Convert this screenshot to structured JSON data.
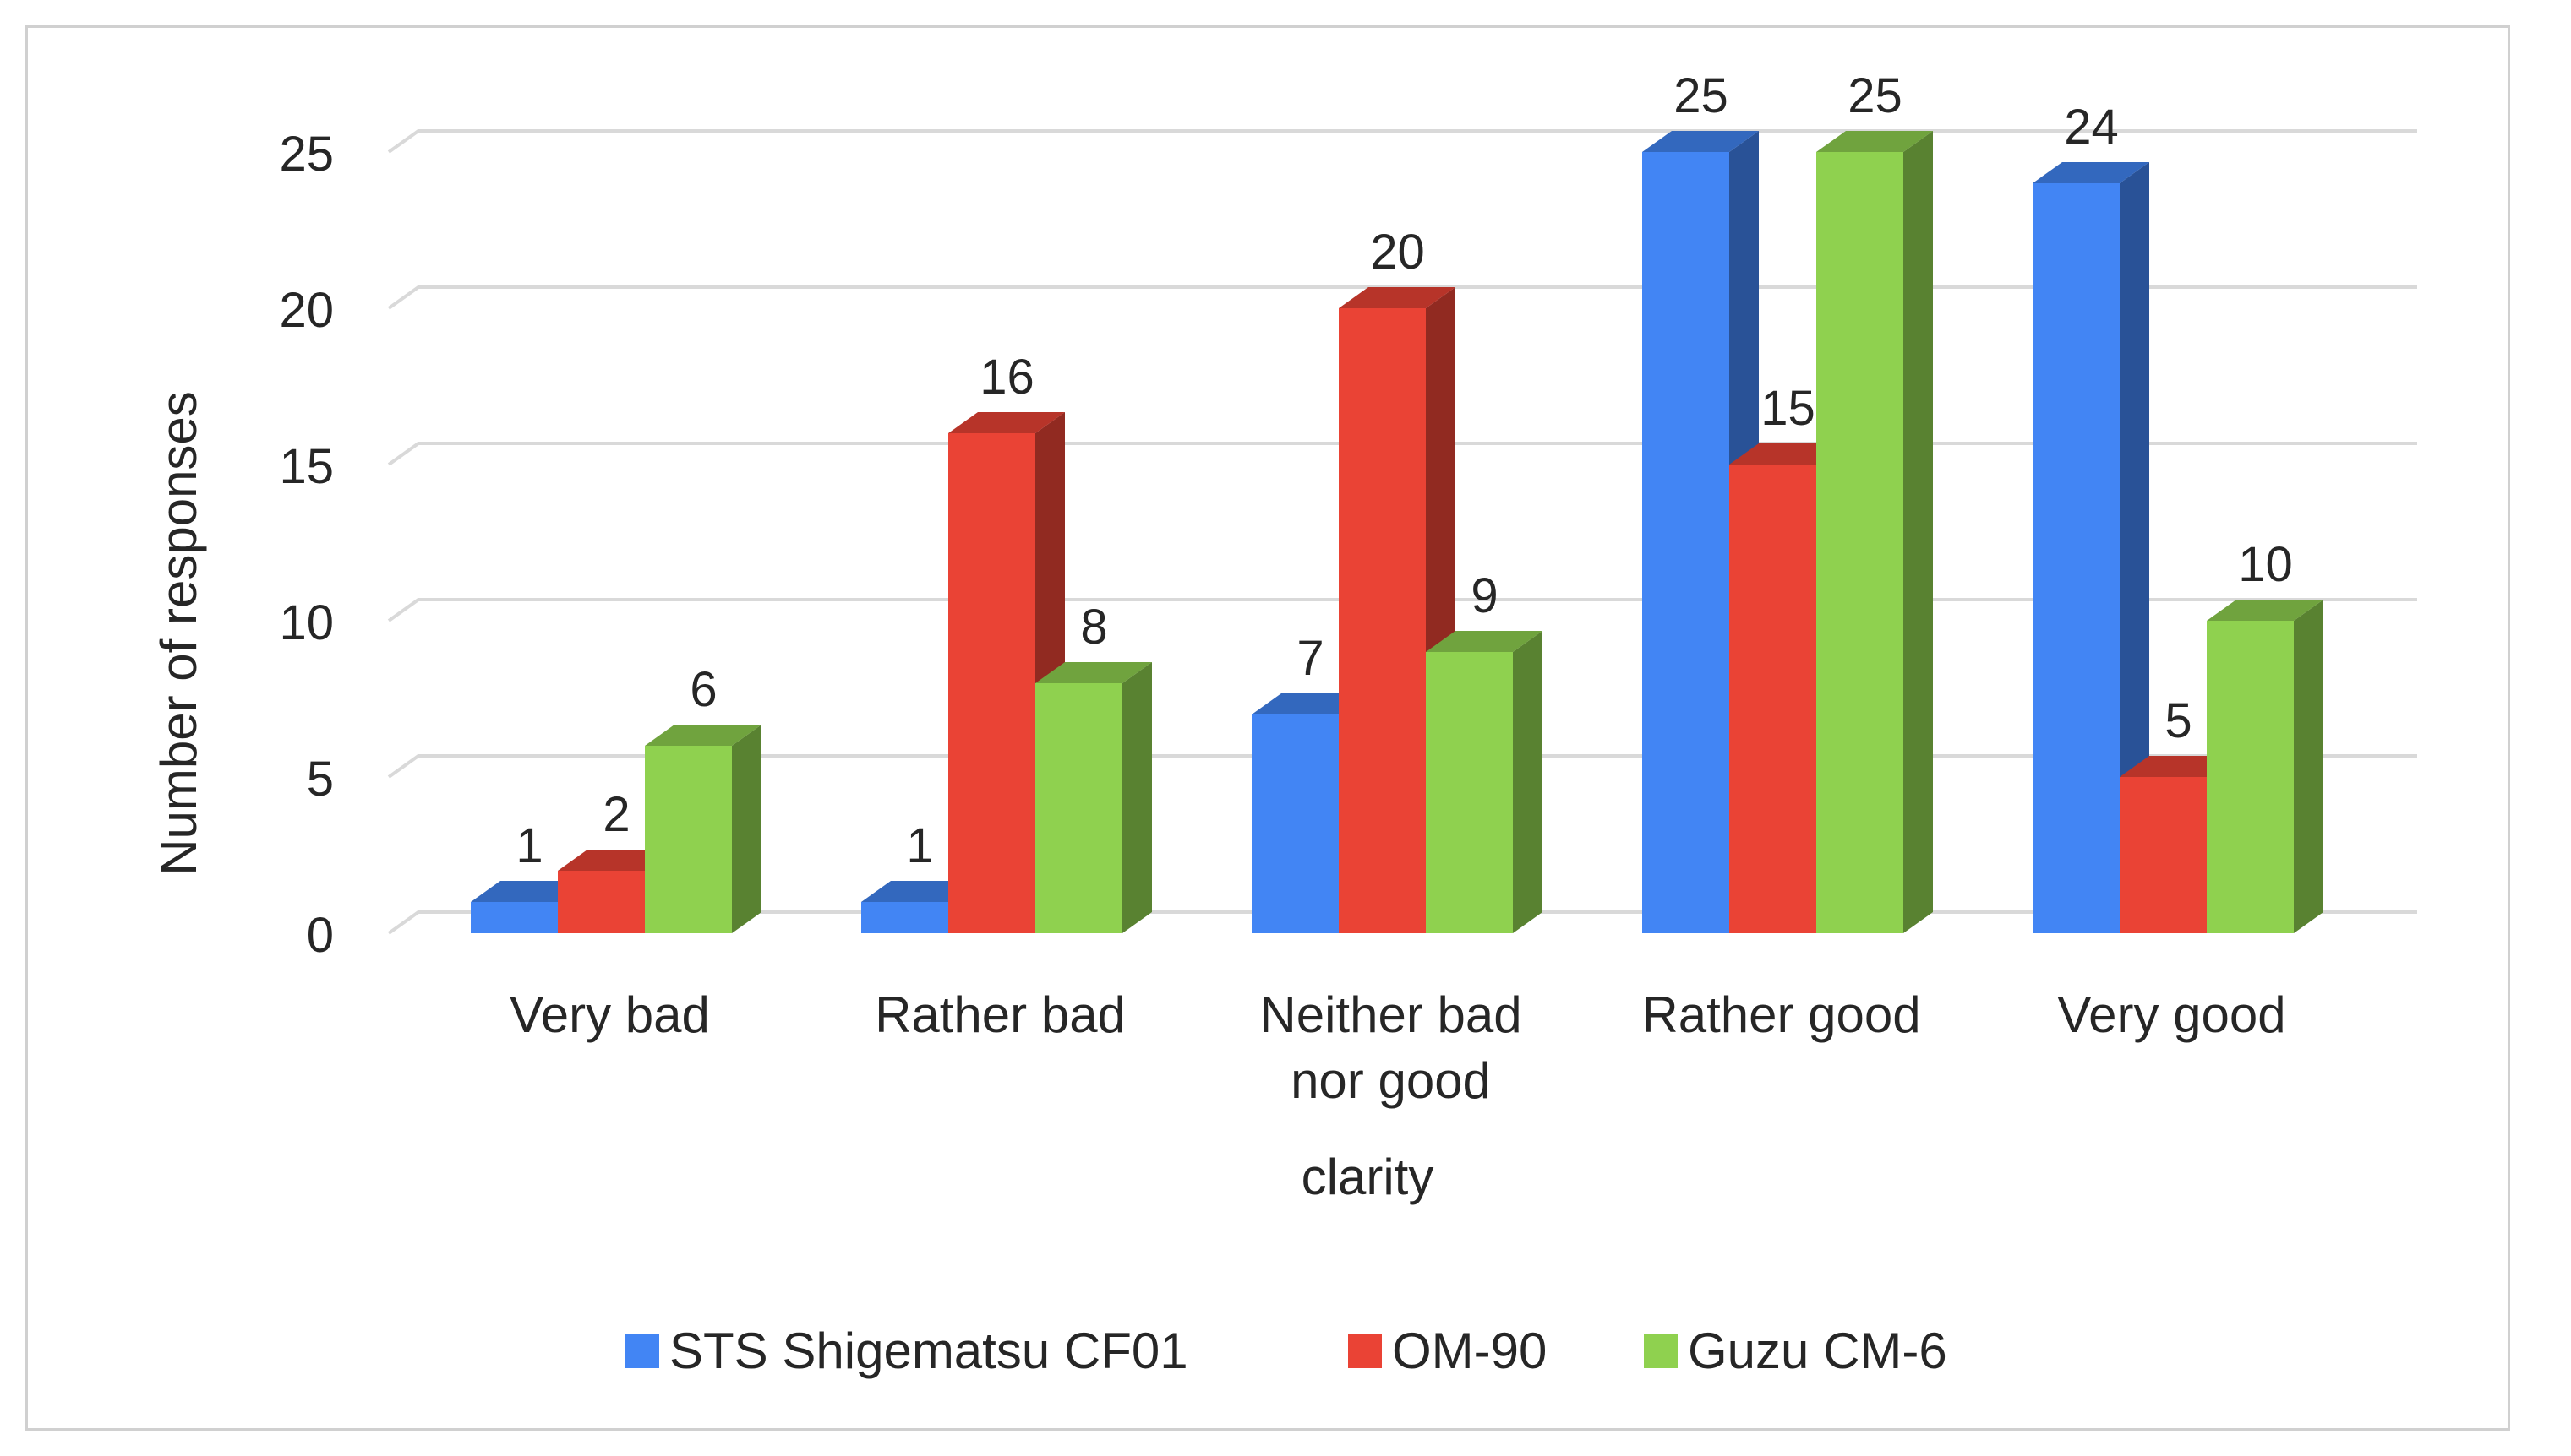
{
  "chart_data": {
    "type": "bar",
    "title": "",
    "xlabel": "clarity",
    "ylabel": "Number of responses",
    "ylim": [
      0,
      25
    ],
    "yticks": [
      0,
      5,
      10,
      15,
      20,
      25
    ],
    "grid": true,
    "legend_position": "bottom",
    "categories": [
      "Very bad",
      "Rather bad",
      "Neither bad nor good",
      "Rather good",
      "Very good"
    ],
    "category_lines": [
      [
        "Very bad"
      ],
      [
        "Rather bad"
      ],
      [
        "Neither bad",
        "nor good"
      ],
      [
        "Rather good"
      ],
      [
        "Very good"
      ]
    ],
    "series": [
      {
        "name": "STS Shigematsu CF01",
        "values": [
          1,
          1,
          7,
          25,
          24
        ],
        "color": "#4285f4"
      },
      {
        "name": "OM-90",
        "values": [
          2,
          16,
          20,
          15,
          5
        ],
        "color": "#ea4335"
      },
      {
        "name": "Guzu CM-6",
        "values": [
          6,
          8,
          9,
          25,
          10
        ],
        "color": "#8fd14f"
      }
    ]
  }
}
